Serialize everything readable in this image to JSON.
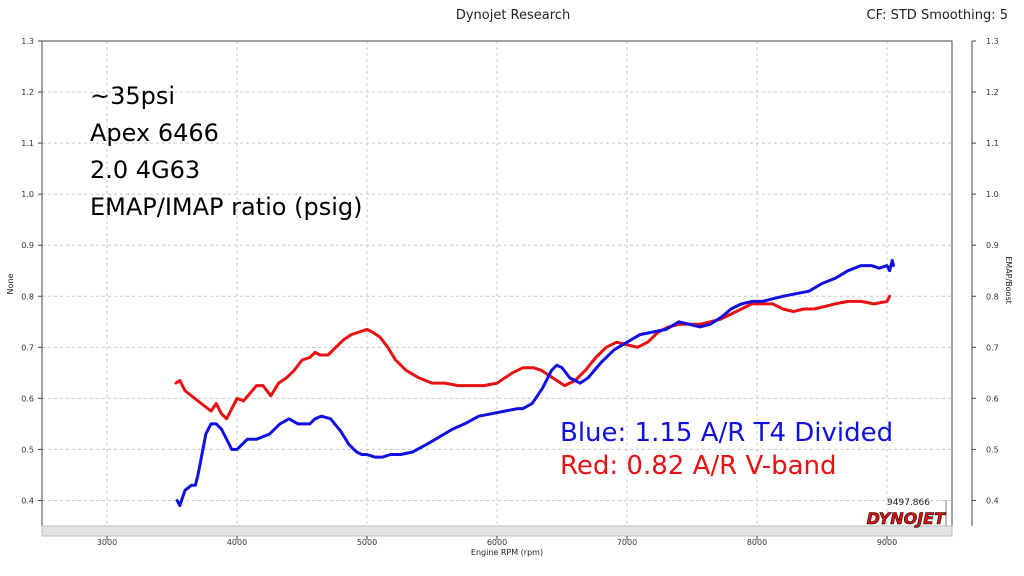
{
  "header": {
    "center": "Dynojet Research",
    "right": "CF: STD Smoothing: 5"
  },
  "brand": "DYNOJET",
  "readout": "9497.866",
  "chart_data": {
    "type": "line",
    "xlabel": "Engine RPM  (rpm)",
    "ylabel_left": "None",
    "ylabel_right": "EMAP/Boost",
    "xlim": [
      2500,
      9500
    ],
    "ylim": [
      0.35,
      1.3
    ],
    "x_ticks": [
      3000,
      4000,
      5000,
      6000,
      7000,
      8000,
      9000
    ],
    "y_ticks": [
      "1.3",
      "1.2",
      "1.1",
      "1.0",
      "0.9",
      "0.8",
      "0.7",
      "0.6",
      "0.5",
      "0.4"
    ],
    "y_tick_values": [
      1.3,
      1.2,
      1.1,
      1.0,
      0.9,
      0.8,
      0.7,
      0.6,
      0.5,
      0.4
    ],
    "grid": true,
    "annotations": [
      "~35psi",
      "Apex 6466",
      "2.0 4G63",
      "EMAP/IMAP ratio (psig)"
    ],
    "series": [
      {
        "legend": "Blue: 1.15 A/R T4 Divided",
        "color": "#1010e0",
        "x": [
          3540,
          3560,
          3600,
          3650,
          3680,
          3700,
          3730,
          3760,
          3800,
          3840,
          3880,
          3920,
          3960,
          4000,
          4040,
          4080,
          4150,
          4250,
          4330,
          4400,
          4470,
          4560,
          4600,
          4650,
          4720,
          4800,
          4860,
          4920,
          4960,
          5000,
          5060,
          5120,
          5180,
          5260,
          5350,
          5460,
          5560,
          5660,
          5750,
          5860,
          5960,
          6060,
          6160,
          6200,
          6270,
          6350,
          6420,
          6460,
          6500,
          6560,
          6640,
          6700,
          6800,
          6900,
          7000,
          7100,
          7200,
          7300,
          7400,
          7480,
          7560,
          7640,
          7730,
          7800,
          7880,
          7960,
          8040,
          8120,
          8200,
          8300,
          8400,
          8500,
          8600,
          8700,
          8800,
          8880,
          8940,
          9000,
          9020,
          9040,
          9050
        ],
        "y": [
          0.4,
          0.39,
          0.42,
          0.43,
          0.43,
          0.45,
          0.49,
          0.53,
          0.55,
          0.55,
          0.54,
          0.52,
          0.5,
          0.5,
          0.51,
          0.52,
          0.52,
          0.53,
          0.55,
          0.56,
          0.55,
          0.55,
          0.56,
          0.565,
          0.56,
          0.535,
          0.51,
          0.495,
          0.49,
          0.49,
          0.485,
          0.485,
          0.49,
          0.49,
          0.495,
          0.51,
          0.525,
          0.54,
          0.55,
          0.565,
          0.57,
          0.575,
          0.58,
          0.58,
          0.59,
          0.62,
          0.655,
          0.665,
          0.66,
          0.64,
          0.63,
          0.64,
          0.67,
          0.695,
          0.71,
          0.725,
          0.73,
          0.735,
          0.75,
          0.745,
          0.74,
          0.745,
          0.76,
          0.775,
          0.785,
          0.79,
          0.79,
          0.795,
          0.8,
          0.805,
          0.81,
          0.825,
          0.835,
          0.85,
          0.86,
          0.86,
          0.855,
          0.86,
          0.85,
          0.87,
          0.86
        ]
      },
      {
        "legend": "Red:  0.82 A/R V-band",
        "color": "#e81010",
        "x": [
          3530,
          3560,
          3600,
          3650,
          3700,
          3750,
          3800,
          3840,
          3880,
          3920,
          3960,
          4000,
          4050,
          4100,
          4150,
          4200,
          4260,
          4320,
          4380,
          4440,
          4500,
          4560,
          4600,
          4640,
          4700,
          4760,
          4820,
          4880,
          4940,
          5000,
          5040,
          5100,
          5160,
          5220,
          5300,
          5400,
          5500,
          5600,
          5700,
          5800,
          5900,
          6000,
          6060,
          6120,
          6200,
          6280,
          6340,
          6400,
          6460,
          6520,
          6600,
          6680,
          6760,
          6840,
          6920,
          7000,
          7080,
          7160,
          7240,
          7320,
          7400,
          7480,
          7560,
          7640,
          7720,
          7800,
          7880,
          7960,
          8040,
          8120,
          8200,
          8280,
          8360,
          8440,
          8520,
          8600,
          8700,
          8800,
          8900,
          9000,
          9020
        ],
        "y": [
          0.63,
          0.635,
          0.615,
          0.605,
          0.595,
          0.585,
          0.575,
          0.59,
          0.57,
          0.56,
          0.58,
          0.6,
          0.595,
          0.61,
          0.625,
          0.625,
          0.605,
          0.63,
          0.64,
          0.655,
          0.675,
          0.68,
          0.69,
          0.685,
          0.685,
          0.7,
          0.715,
          0.725,
          0.73,
          0.735,
          0.73,
          0.72,
          0.7,
          0.675,
          0.655,
          0.64,
          0.63,
          0.63,
          0.625,
          0.625,
          0.625,
          0.63,
          0.64,
          0.65,
          0.66,
          0.66,
          0.655,
          0.645,
          0.635,
          0.625,
          0.635,
          0.655,
          0.68,
          0.7,
          0.71,
          0.705,
          0.7,
          0.71,
          0.73,
          0.74,
          0.745,
          0.745,
          0.745,
          0.75,
          0.755,
          0.765,
          0.775,
          0.785,
          0.785,
          0.785,
          0.775,
          0.77,
          0.775,
          0.775,
          0.78,
          0.785,
          0.79,
          0.79,
          0.785,
          0.79,
          0.8
        ]
      }
    ]
  }
}
